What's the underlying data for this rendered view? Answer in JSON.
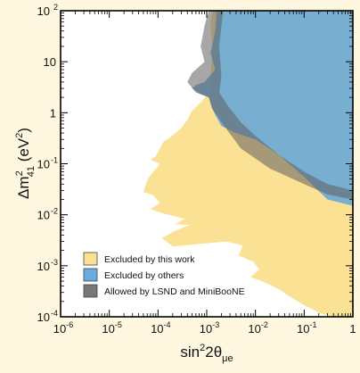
{
  "chart_data": {
    "type": "area",
    "xlabel": "sin²2θμe",
    "ylabel": "Δm²41 (eV²)",
    "xscale": "log",
    "yscale": "log",
    "xlim": [
      1e-06,
      1
    ],
    "ylim": [
      0.0001,
      100
    ],
    "x_ticks": [
      {
        "value": 1e-06,
        "base": "10",
        "exp": "-6"
      },
      {
        "value": 1e-05,
        "base": "10",
        "exp": "-5"
      },
      {
        "value": 0.0001,
        "base": "10",
        "exp": "-4"
      },
      {
        "value": 0.001,
        "base": "10",
        "exp": "-3"
      },
      {
        "value": 0.01,
        "base": "10",
        "exp": "-2"
      },
      {
        "value": 0.1,
        "base": "10",
        "exp": "-1"
      },
      {
        "value": 1,
        "base": "1",
        "exp": ""
      }
    ],
    "y_ticks": [
      {
        "value": 0.0001,
        "base": "10",
        "exp": "-4"
      },
      {
        "value": 0.001,
        "base": "10",
        "exp": "-3"
      },
      {
        "value": 0.01,
        "base": "10",
        "exp": "-2"
      },
      {
        "value": 0.1,
        "base": "10",
        "exp": "-1"
      },
      {
        "value": 1,
        "base": "1",
        "exp": ""
      },
      {
        "value": 10,
        "base": "10",
        "exp": ""
      },
      {
        "value": 100,
        "base": "10",
        "exp": "2"
      }
    ],
    "grid": false,
    "legend_position": "bottom-left",
    "series": [
      {
        "name": "Excluded by this work",
        "color": "#fbdd85",
        "boundary": [
          [
            0.0013,
            100
          ],
          [
            0.0012,
            50
          ],
          [
            0.0013,
            20
          ],
          [
            0.0012,
            5
          ],
          [
            0.0011,
            2.4
          ],
          [
            0.00075,
            1.6
          ],
          [
            0.0005,
            1.1
          ],
          [
            0.0004,
            0.72
          ],
          [
            0.0003,
            0.5
          ],
          [
            0.0002,
            0.36
          ],
          [
            0.00013,
            0.27
          ],
          [
            9e-05,
            0.14
          ],
          [
            7e-05,
            0.12
          ],
          [
            0.00011,
            0.1
          ],
          [
            8e-05,
            0.07
          ],
          [
            6e-05,
            0.048
          ],
          [
            5e-05,
            0.028
          ],
          [
            8e-05,
            0.024
          ],
          [
            0.00011,
            0.017
          ],
          [
            7e-05,
            0.013
          ],
          [
            0.00011,
            0.011
          ],
          [
            0.00035,
            0.0083
          ],
          [
            0.00022,
            0.0065
          ],
          [
            0.00045,
            0.0063
          ],
          [
            0.00024,
            0.005
          ],
          [
            0.00012,
            0.0035
          ],
          [
            0.0002,
            0.0024
          ],
          [
            0.0025,
            0.003
          ],
          [
            0.0055,
            0.0025
          ],
          [
            0.0045,
            0.0016
          ],
          [
            0.009,
            0.0012
          ],
          [
            0.012,
            0.00085
          ],
          [
            0.008,
            0.0006
          ],
          [
            0.015,
            0.00048
          ],
          [
            0.03,
            0.00035
          ],
          [
            0.05,
            0.00025
          ],
          [
            0.1,
            0.00017
          ],
          [
            0.2,
            0.00012
          ],
          [
            0.35,
            0.0001
          ],
          [
            1,
            0.0001
          ],
          [
            1,
            100
          ]
        ]
      },
      {
        "name": "Excluded by others",
        "color": "#5aa2dd",
        "boundary": [
          [
            0.0016,
            100
          ],
          [
            0.0015,
            40
          ],
          [
            0.0012,
            15
          ],
          [
            0.0015,
            7
          ],
          [
            0.0011,
            5
          ],
          [
            0.0009,
            4
          ],
          [
            0.0006,
            3.5
          ],
          [
            0.0005,
            3
          ],
          [
            0.0007,
            2.4
          ],
          [
            0.0011,
            2
          ],
          [
            0.0013,
            1.2
          ],
          [
            0.0015,
            0.9
          ],
          [
            0.002,
            0.55
          ],
          [
            0.004,
            0.4
          ],
          [
            0.01,
            0.3
          ],
          [
            0.03,
            0.15
          ],
          [
            0.1,
            0.055
          ],
          [
            0.3,
            0.02
          ],
          [
            1,
            0.015
          ],
          [
            1,
            100
          ]
        ]
      },
      {
        "name": "Allowed by LSND and MiniBooNE",
        "color": "#5f5f5f",
        "boundary": [
          [
            0.0011,
            100
          ],
          [
            0.0009,
            50
          ],
          [
            0.00075,
            20
          ],
          [
            0.0009,
            10
          ],
          [
            0.0005,
            6
          ],
          [
            0.0004,
            4
          ],
          [
            0.0006,
            2.5
          ],
          [
            0.0011,
            2
          ],
          [
            0.0013,
            1.2
          ],
          [
            0.002,
            0.65
          ],
          [
            0.005,
            0.2
          ],
          [
            0.02,
            0.08
          ],
          [
            0.1,
            0.04
          ],
          [
            0.3,
            0.025
          ],
          [
            1,
            0.02
          ],
          [
            1,
            0.03
          ],
          [
            0.3,
            0.04
          ],
          [
            0.1,
            0.07
          ],
          [
            0.03,
            0.15
          ],
          [
            0.01,
            0.35
          ],
          [
            0.005,
            0.65
          ],
          [
            0.003,
            1.2
          ],
          [
            0.0018,
            2.5
          ],
          [
            0.002,
            5
          ],
          [
            0.0018,
            20
          ],
          [
            0.002,
            50
          ],
          [
            0.0022,
            100
          ]
        ]
      }
    ]
  }
}
